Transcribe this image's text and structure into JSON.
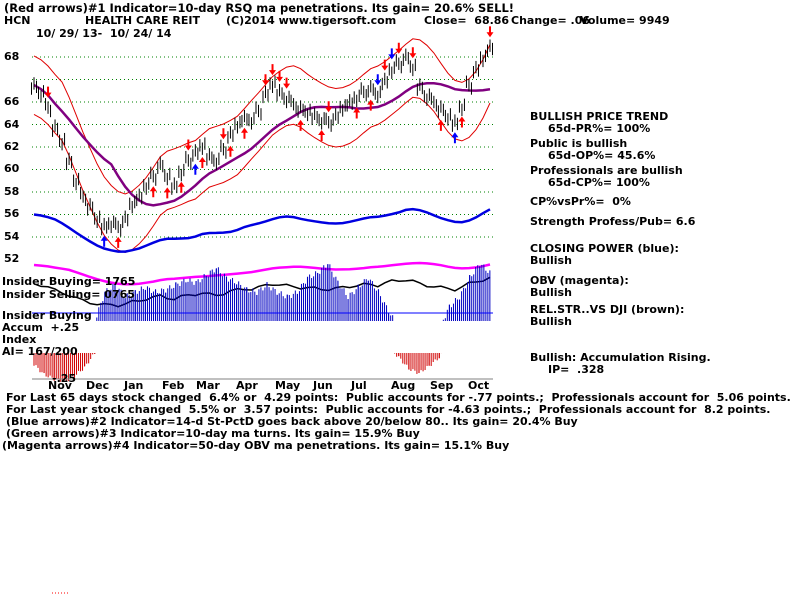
{
  "header": {
    "indicator_line": "(Red arrows)#1 Indicator=10-day RSQ ma penetrations. Its gain= 20.6% SELL!",
    "ticker": "HCN",
    "name": "HEALTH CARE REIT",
    "copyright": "(C)2014 www.tigersoft.com",
    "close": "Close=  68.86",
    "change": "Change= .06",
    "volume": "Volume= 9949",
    "date_range": "10/ 29/ 13-  10/ 24/ 14"
  },
  "price_axis": [
    "68",
    "66",
    "64",
    "62",
    "60",
    "58",
    "56",
    "54",
    "52"
  ],
  "months": [
    "Nov",
    "Dec",
    "Jan",
    "Feb",
    "Mar",
    "Apr",
    "May",
    "Jun",
    "Jul",
    "Aug",
    "Sep",
    "Oct"
  ],
  "left_labels": {
    "insider_buying": "Insider Buying= 1765",
    "insider_selling": "Insider Selling= 0765",
    "insider_buying2": "Insider Buying",
    "accum": "Accum  +.25",
    "index": "Index",
    "ai": "AI= 167/200",
    "minus25": "-.25"
  },
  "right_panel": {
    "trend_title": "BULLISH PRICE TREND",
    "pr": "65d-PR%= 100%",
    "public": "Public is bullish",
    "op": "65d-OP%= 45.6%",
    "pros": "Professionals are bullish",
    "cp": "65d-CP%= 100%",
    "cpvspr": "CP%vsPr%=  0%",
    "strength": "Strength Profess/Pub= 6.6",
    "closing_power": "CLOSING POWER (blue):",
    "closing_power_v": "Bullish",
    "obv": "OBV (magenta):",
    "obv_v": "Bullish",
    "relstr": "REL.STR..VS DJI (brown):",
    "relstr_v": "Bullish",
    "accum": "Bullish: Accumulation Rising.",
    "ip": "IP=  .328"
  },
  "footer": {
    "line1": "For Last 65 days stock changed  6.4% or  4.29 points:  Public accounts for -.77 points.;  Professionals account for  5.06 points.",
    "line2": "For Last year stock changed  5.5% or  3.57 points:  Public accounts for -4.63 points.;  Professionals account for  8.2 points.",
    "line3": "(Blue arrows)#2 Indicator=14-d St-PctD goes back above 20/below 80.. Its gain= 20.4% Buy",
    "line4": "(Green arrows)#3 Indicator=10-day ma turns. Its gain= 15.9% Buy",
    "line5": "(Magenta arrows)#4 Indicator=50-day OBV ma penetrations. Its gain= 15.1% Buy"
  },
  "chart_data": {
    "type": "line",
    "ylim": [
      50.5,
      69.5
    ],
    "series": [
      {
        "values": [
          65.5,
          64.8,
          63.5,
          61.6,
          60.4,
          58.8,
          57.0,
          55.6,
          54.6,
          53.5,
          53.0,
          53.2,
          52.9,
          53.5,
          54.8,
          55.6,
          56.6,
          57.4,
          58.3,
          57.3,
          56.6,
          57.8,
          58.8,
          59.4,
          60.0,
          59.2,
          58.8,
          59.8,
          61.0,
          61.9,
          62.6,
          62.4,
          63.2,
          64.6,
          65.5,
          64.9,
          64.3,
          63.8,
          63.3,
          63.0,
          62.8,
          62.4,
          62.2,
          62.6,
          63.4,
          64.0,
          64.4,
          64.9,
          65.1,
          64.6,
          65.9,
          66.9,
          67.4,
          67.9,
          67.0,
          65.4,
          64.5,
          64.0,
          63.3,
          62.6,
          62.2,
          63.6,
          65.5,
          66.8,
          67.8,
          68.86
        ]
      }
    ],
    "accumulation_index": {
      "range": [
        -0.25,
        0.25
      ],
      "values": [
        -0.08,
        -0.15,
        -0.18,
        -0.2,
        -0.16,
        -0.1,
        0.0,
        0.12,
        0.15,
        0.1,
        0.12,
        0.14,
        0.12,
        0.13,
        0.15,
        0.17,
        0.16,
        0.19,
        0.22,
        0.18,
        0.16,
        0.13,
        0.12,
        0.15,
        0.12,
        0.1,
        0.12,
        0.18,
        0.2,
        0.24,
        0.16,
        0.1,
        0.14,
        0.18,
        0.12,
        0.04,
        -0.03,
        -0.11,
        -0.14,
        -0.09,
        -0.03,
        0.06,
        0.1,
        0.18,
        0.24,
        0.2
      ]
    }
  },
  "colors": {
    "price": "#000000",
    "band": "#e00000",
    "ma": "#800080",
    "closing_power": "#0000e0",
    "obv": "#ff00ff",
    "relstr": "#000000",
    "accum_pos": "#0000c0",
    "accum_neg": "#d00000",
    "grid": "#008000",
    "arrow_red": "#ff0000",
    "arrow_blue": "#0000ff"
  }
}
